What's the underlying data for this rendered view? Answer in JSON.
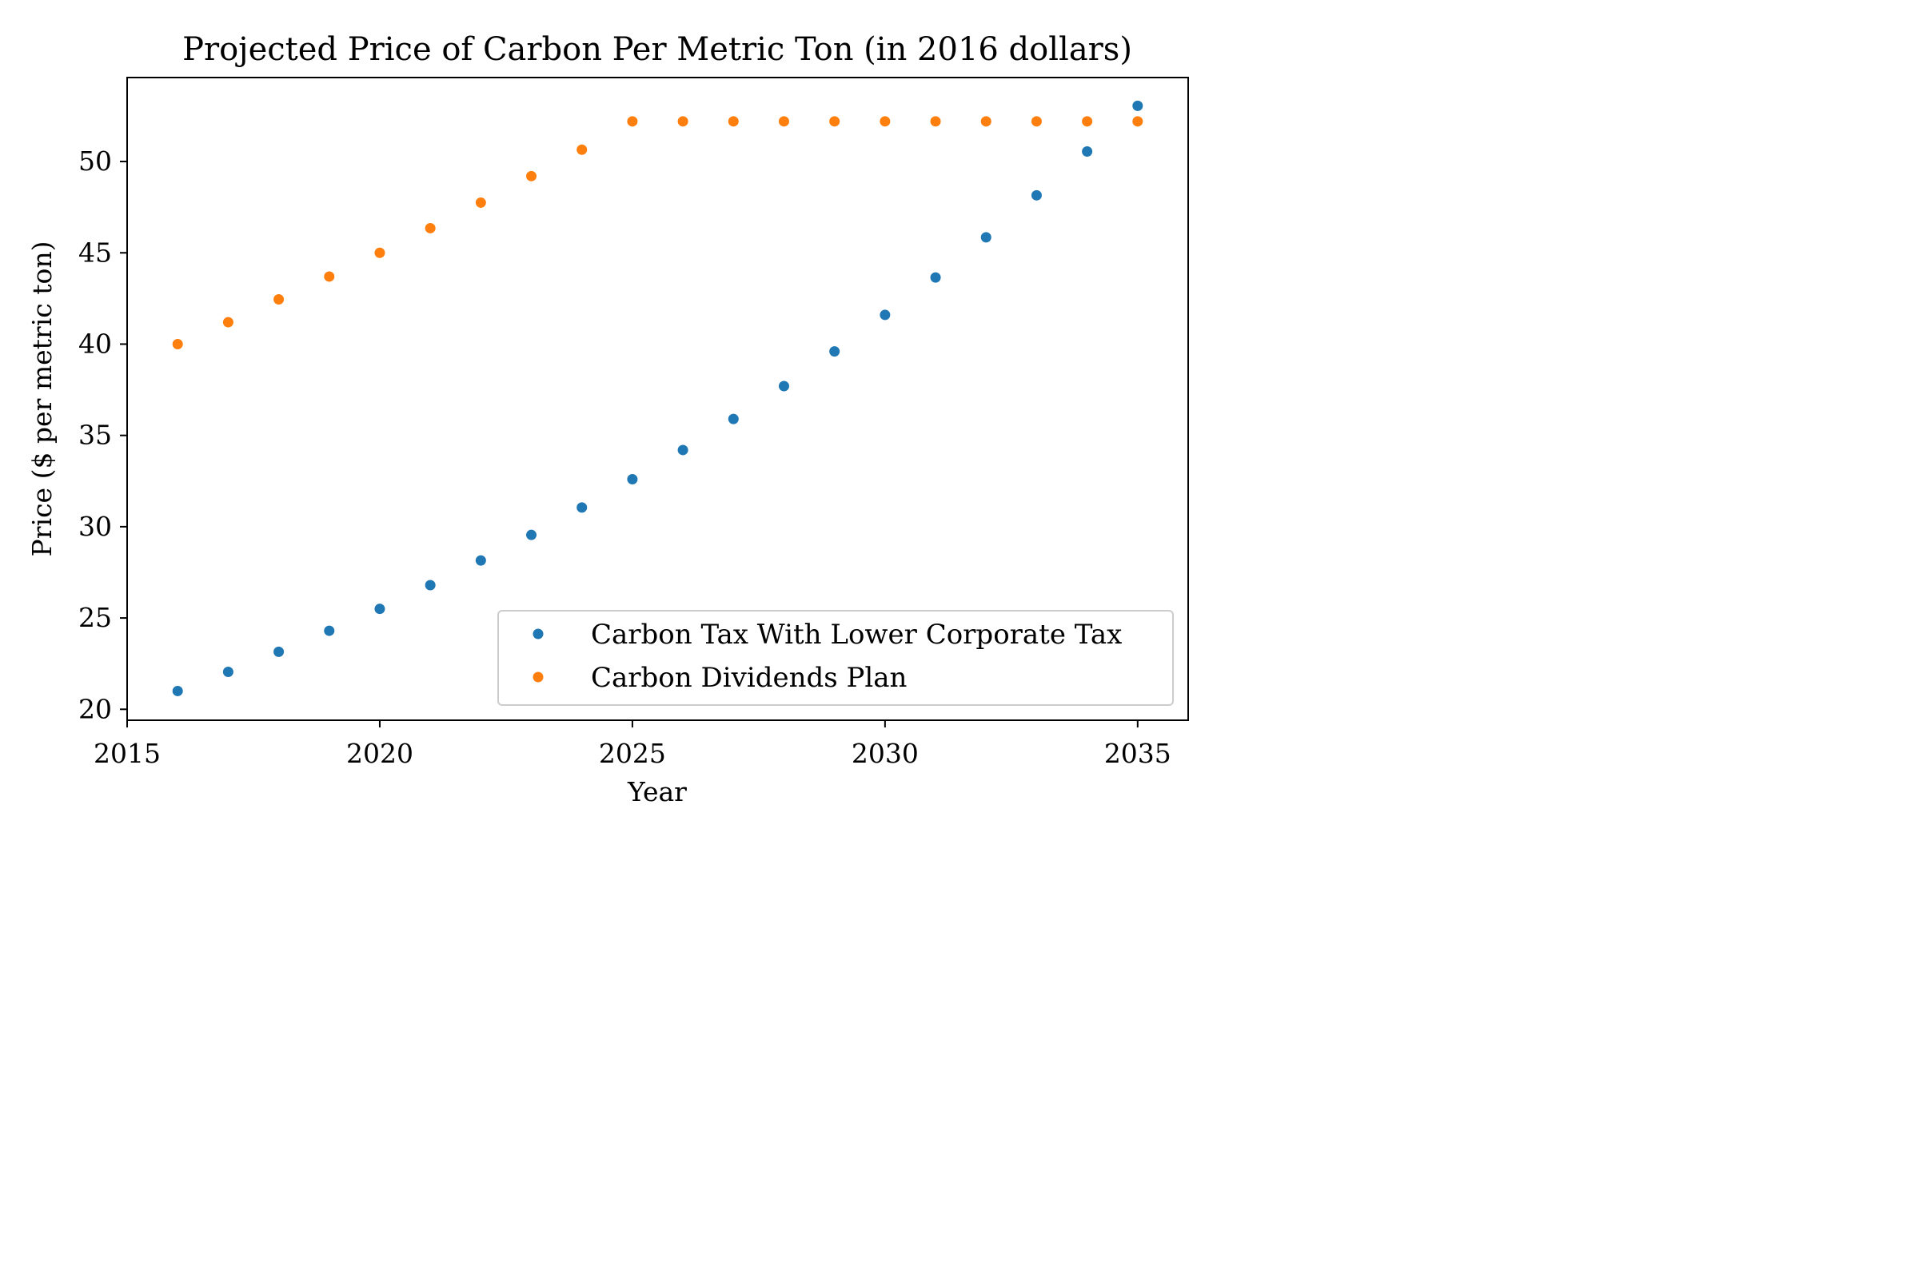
{
  "chart_data": {
    "type": "scatter",
    "title": "Projected Price of Carbon Per Metric Ton (in 2016 dollars)",
    "xlabel": "Year",
    "ylabel": "Price ($ per metric ton)",
    "xlim": [
      2015,
      2036
    ],
    "ylim": [
      19.4,
      54.6
    ],
    "xticks": [
      2015,
      2020,
      2025,
      2030,
      2035
    ],
    "yticks": [
      20,
      25,
      30,
      35,
      40,
      45,
      50
    ],
    "grid": false,
    "legend_position": "lower right",
    "x": [
      2016,
      2017,
      2018,
      2019,
      2020,
      2021,
      2022,
      2023,
      2024,
      2025,
      2026,
      2027,
      2028,
      2029,
      2030,
      2031,
      2032,
      2033,
      2034,
      2035
    ],
    "series": [
      {
        "name": "Carbon Tax With Lower Corporate Tax",
        "color": "#1f77b4",
        "values": [
          21.0,
          22.05,
          23.15,
          24.3,
          25.5,
          26.8,
          28.15,
          29.55,
          31.05,
          32.6,
          34.2,
          35.9,
          37.7,
          39.6,
          41.6,
          43.65,
          45.85,
          48.15,
          50.55,
          53.05
        ]
      },
      {
        "name": "Carbon Dividends Plan",
        "color": "#ff7f0e",
        "values": [
          40.0,
          41.2,
          42.45,
          43.7,
          45.0,
          46.35,
          47.75,
          49.2,
          50.65,
          52.2,
          52.2,
          52.2,
          52.2,
          52.2,
          52.2,
          52.2,
          52.2,
          52.2,
          52.2,
          52.2
        ]
      }
    ]
  }
}
